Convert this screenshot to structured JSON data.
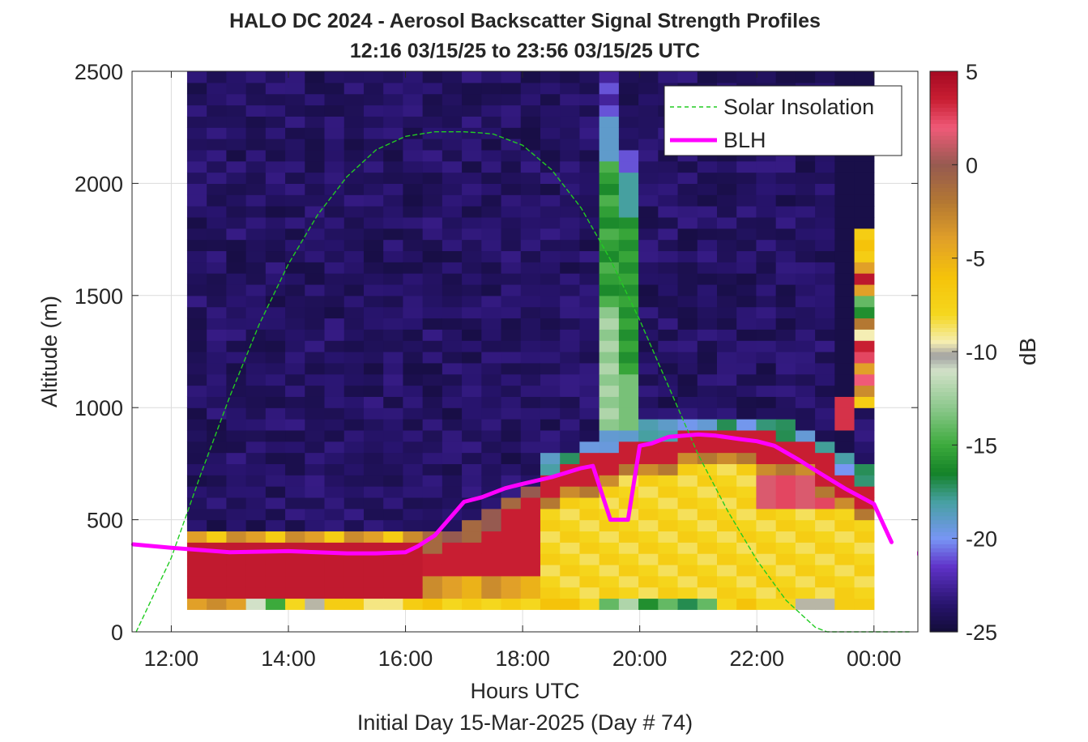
{
  "chart_data": {
    "type": "heatmap",
    "title": "HALO DC 2024 - Aerosol Backscatter Signal Strength Profiles",
    "subtitle": "12:16 03/15/25 to 23:56 03/15/25  UTC",
    "xlabel": "Hours UTC",
    "xsublabel": "Initial Day 15-Mar-2025 (Day # 74)",
    "ylabel": "Altitude (m)",
    "xlim": [
      11.33,
      24.75
    ],
    "ylim": [
      0,
      2500
    ],
    "x_ticks": [
      12,
      14,
      16,
      18,
      20,
      22,
      24
    ],
    "x_tick_labels": [
      "12:00",
      "14:00",
      "16:00",
      "18:00",
      "20:00",
      "22:00",
      "00:00"
    ],
    "y_ticks": [
      0,
      500,
      1000,
      1500,
      2000,
      2500
    ],
    "y_tick_labels": [
      "0",
      "500",
      "1000",
      "1500",
      "2000",
      "2500"
    ],
    "grid": true,
    "colorbar": {
      "label": "dB",
      "range": [
        -25,
        5
      ],
      "ticks": [
        5,
        0,
        -5,
        -10,
        -15,
        -20,
        -25
      ],
      "tick_labels": [
        "5",
        "0",
        "-5",
        "-10",
        "-15",
        "-20",
        "-25"
      ]
    },
    "heatmap": {
      "x_start": 12.27,
      "x_end": 24.0,
      "n_cols": 35,
      "y_start": 100,
      "y_step": 50,
      "y_top": 2500,
      "low_value": -24.3,
      "notes": "dB values read off the colormap; columns are ~20-minute profiles"
    },
    "series": [
      {
        "name": "Solar Insolation",
        "style": "dashed",
        "color": "#22cc22",
        "x": [
          11.4,
          12.0,
          12.5,
          13.0,
          13.5,
          14.0,
          14.5,
          15.0,
          15.5,
          16.0,
          16.5,
          17.0,
          17.3,
          17.5,
          18.0,
          18.5,
          19.0,
          19.5,
          20.0,
          20.5,
          21.0,
          21.5,
          22.0,
          22.5,
          23.0,
          23.2,
          23.5,
          24.0,
          24.6
        ],
        "y": [
          0,
          330,
          700,
          1050,
          1370,
          1640,
          1860,
          2030,
          2150,
          2210,
          2230,
          2230,
          2225,
          2220,
          2170,
          2060,
          1890,
          1660,
          1390,
          1090,
          790,
          540,
          320,
          140,
          20,
          0,
          0,
          0,
          0
        ]
      },
      {
        "name": "BLH",
        "style": "solid",
        "color": "#ff00ff",
        "x": [
          11.35,
          12.0,
          12.5,
          13.0,
          14.0,
          15.0,
          15.5,
          16.0,
          16.2,
          16.5,
          16.8,
          17.0,
          17.3,
          17.7,
          18.0,
          18.5,
          19.0,
          19.2,
          19.5,
          19.8,
          20.0,
          20.2,
          20.5,
          21.0,
          21.3,
          21.7,
          22.0,
          22.3,
          22.7,
          23.0,
          23.5,
          24.0,
          24.3
        ],
        "y": [
          390,
          375,
          365,
          355,
          360,
          350,
          350,
          355,
          380,
          430,
          520,
          580,
          600,
          640,
          660,
          690,
          730,
          740,
          500,
          500,
          830,
          840,
          870,
          880,
          875,
          860,
          850,
          830,
          770,
          720,
          640,
          570,
          400
        ],
        "extra_segment": {
          "x": [
            24.75,
            24.85
          ],
          "y": [
            350,
            350
          ]
        }
      }
    ],
    "legend": {
      "placement": "top-right",
      "entries": [
        "Solar Insolation",
        "BLH"
      ]
    }
  }
}
